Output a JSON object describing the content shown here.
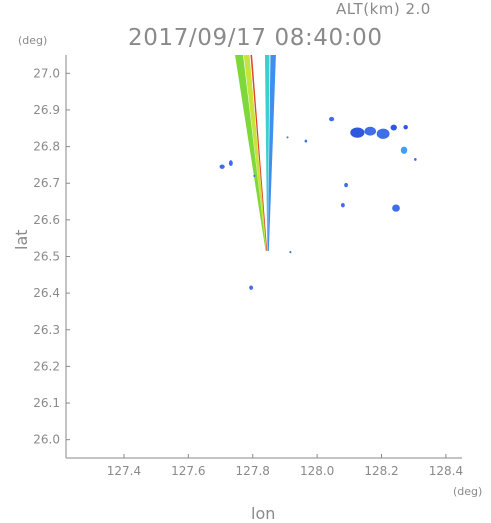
{
  "header": {
    "altitude_label": "ALT(km)  2.0",
    "timestamp": "2017/09/17 08:40:00"
  },
  "chart_data": {
    "type": "heatmap",
    "title": "2017/09/17 08:40:00",
    "xlabel": "lon",
    "ylabel": "lat",
    "x_unit": "(deg)",
    "y_unit": "(deg)",
    "xlim": [
      127.22,
      128.45
    ],
    "ylim": [
      25.95,
      27.05
    ],
    "x_ticks": [
      127.4,
      127.6,
      127.8,
      128.0,
      128.2,
      128.4
    ],
    "x_tick_labels": [
      "127.4",
      "127.6",
      "127.8",
      "128.0",
      "128.2",
      "128.4"
    ],
    "y_ticks": [
      26.0,
      26.1,
      26.2,
      26.3,
      26.4,
      26.5,
      26.6,
      26.7,
      26.8,
      26.9,
      27.0
    ],
    "y_tick_labels": [
      "26.0",
      "26.1",
      "26.2",
      "26.3",
      "26.4",
      "26.5",
      "26.6",
      "26.7",
      "26.8",
      "26.9",
      "27.0"
    ],
    "grid": false,
    "beam_apex": [
      127.845,
      26.515
    ],
    "beam_stripes": [
      {
        "color": "#7fd83a",
        "top": [
          127.745,
          127.77
        ],
        "bottom": [
          127.84,
          127.842
        ]
      },
      {
        "color": "#c8e43a",
        "top": [
          127.772,
          127.79
        ],
        "bottom": [
          127.842,
          127.844
        ]
      },
      {
        "color": "#e0462a",
        "top": [
          127.793,
          127.798
        ],
        "bottom": [
          127.843,
          127.845
        ]
      },
      {
        "color": "#3ccfd0",
        "top": [
          127.838,
          127.852
        ],
        "bottom": [
          127.845,
          127.847
        ]
      },
      {
        "color": "#3f8ff0",
        "top": [
          127.855,
          127.872
        ],
        "bottom": [
          127.847,
          127.85
        ]
      }
    ],
    "echoes": [
      {
        "lon": 127.705,
        "lat": 26.745,
        "rx": 0.008,
        "ry": 0.006,
        "color": "#3f6ee8"
      },
      {
        "lon": 127.732,
        "lat": 26.755,
        "rx": 0.006,
        "ry": 0.008,
        "color": "#3f6ee8"
      },
      {
        "lon": 127.795,
        "lat": 26.415,
        "rx": 0.006,
        "ry": 0.006,
        "color": "#3f6ee8"
      },
      {
        "lon": 127.917,
        "lat": 26.512,
        "rx": 0.003,
        "ry": 0.003,
        "color": "#3f6ee8"
      },
      {
        "lon": 127.965,
        "lat": 26.815,
        "rx": 0.004,
        "ry": 0.004,
        "color": "#3f6ee8"
      },
      {
        "lon": 128.045,
        "lat": 26.875,
        "rx": 0.008,
        "ry": 0.006,
        "color": "#3f6ee8"
      },
      {
        "lon": 128.08,
        "lat": 26.64,
        "rx": 0.006,
        "ry": 0.006,
        "color": "#3f6ee8"
      },
      {
        "lon": 128.09,
        "lat": 26.695,
        "rx": 0.006,
        "ry": 0.006,
        "color": "#3f6ee8"
      },
      {
        "lon": 128.125,
        "lat": 26.838,
        "rx": 0.022,
        "ry": 0.014,
        "color": "#2f58e0"
      },
      {
        "lon": 128.165,
        "lat": 26.842,
        "rx": 0.018,
        "ry": 0.012,
        "color": "#3f6ee8"
      },
      {
        "lon": 128.205,
        "lat": 26.835,
        "rx": 0.02,
        "ry": 0.014,
        "color": "#3f6ee8"
      },
      {
        "lon": 128.238,
        "lat": 26.852,
        "rx": 0.01,
        "ry": 0.008,
        "color": "#2f58e0"
      },
      {
        "lon": 128.275,
        "lat": 26.853,
        "rx": 0.007,
        "ry": 0.006,
        "color": "#2f58e0"
      },
      {
        "lon": 128.27,
        "lat": 26.79,
        "rx": 0.01,
        "ry": 0.01,
        "color": "#3fa0f0"
      },
      {
        "lon": 128.305,
        "lat": 26.765,
        "rx": 0.004,
        "ry": 0.004,
        "color": "#3f6ee8"
      },
      {
        "lon": 128.245,
        "lat": 26.632,
        "rx": 0.012,
        "ry": 0.01,
        "color": "#3f6ee8"
      },
      {
        "lon": 127.805,
        "lat": 26.72,
        "rx": 0.003,
        "ry": 0.003,
        "color": "#3f6ee8"
      },
      {
        "lon": 127.908,
        "lat": 26.825,
        "rx": 0.003,
        "ry": 0.002,
        "color": "#3f6ee8"
      }
    ]
  }
}
